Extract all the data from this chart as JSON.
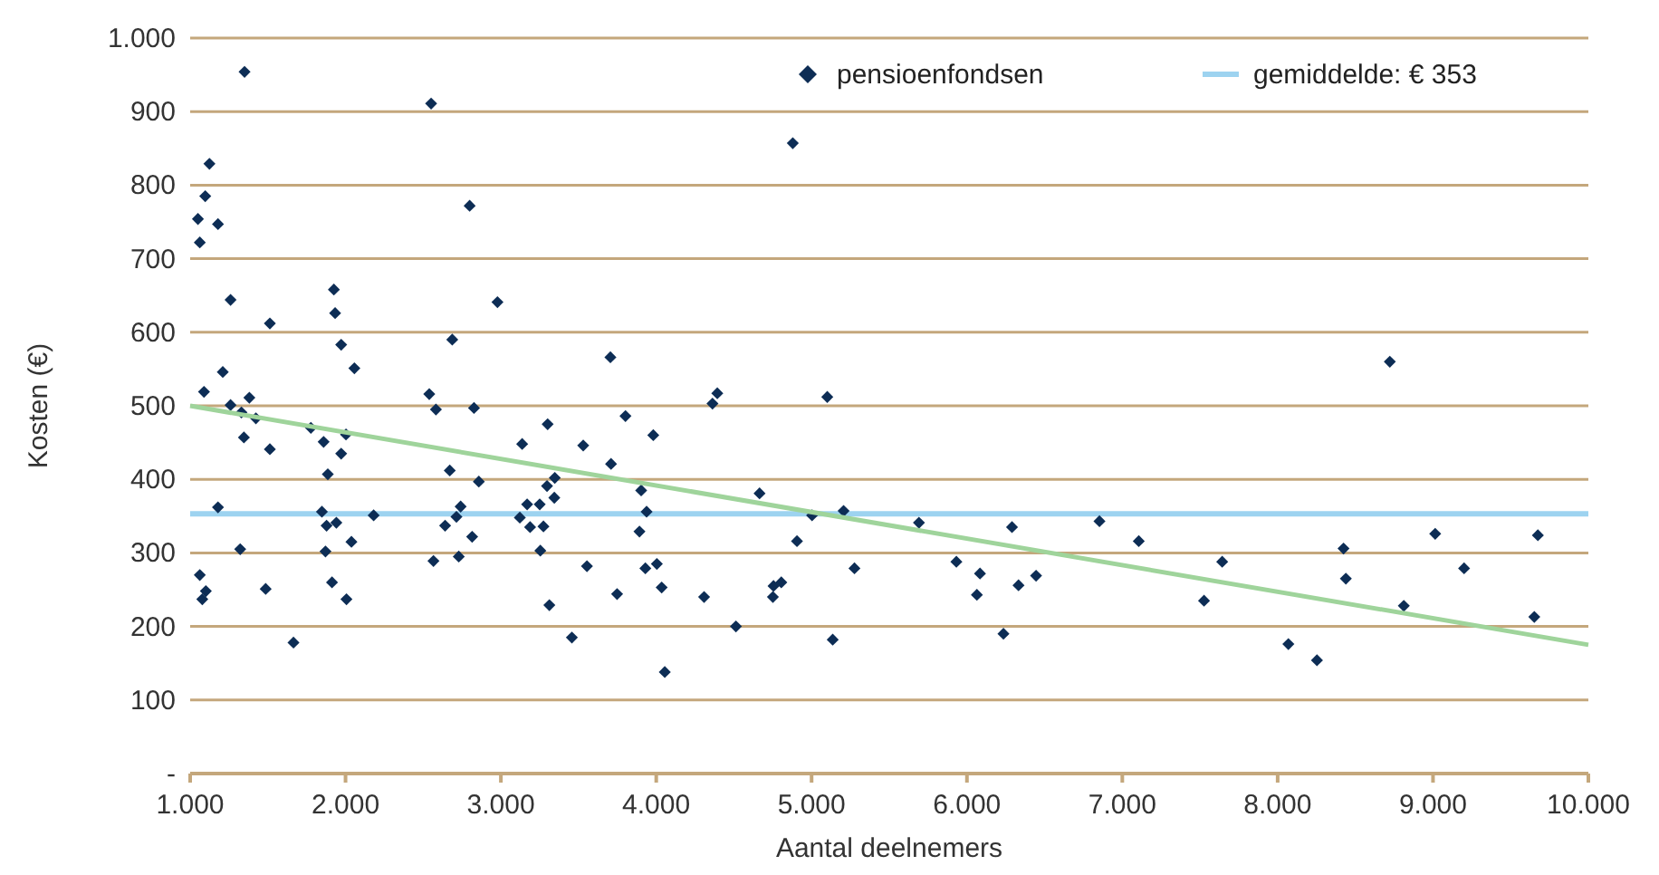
{
  "chart_data": {
    "type": "scatter",
    "xlabel": "Aantal deelnemers",
    "ylabel": "Kosten (€)",
    "xlim": [
      1000,
      10000
    ],
    "xticks": [
      {
        "value": 1000,
        "label": "1.000"
      },
      {
        "value": 2000,
        "label": "2.000"
      },
      {
        "value": 3000,
        "label": "3.000"
      },
      {
        "value": 4000,
        "label": "4.000"
      },
      {
        "value": 5000,
        "label": "5.000"
      },
      {
        "value": 6000,
        "label": "6.000"
      },
      {
        "value": 7000,
        "label": "7.000"
      },
      {
        "value": 8000,
        "label": "8.000"
      },
      {
        "value": 9000,
        "label": "9.000"
      },
      {
        "value": 10000,
        "label": "10.000"
      }
    ],
    "ylim": [
      0,
      1000
    ],
    "yticks": [
      {
        "value": 0,
        "label": "-"
      },
      100,
      200,
      300,
      400,
      500,
      600,
      700,
      800,
      900,
      {
        "value": 1000,
        "label": "1.000"
      }
    ],
    "grid": "y",
    "legend": "top right",
    "series": [
      {
        "name": "pensioenfondsen",
        "marker": "diamond",
        "color": "#0d2d55",
        "x": [
          1350,
          2551,
          1124,
          1097,
          1050,
          1179,
          1062,
          2799,
          1260,
          1925,
          1513,
          2978,
          1933,
          1972,
          2687,
          1210,
          2057,
          1089,
          1260,
          1330,
          1381,
          1423,
          2539,
          2582,
          2827,
          1777,
          1859,
          2003,
          1972,
          1346,
          1513,
          1886,
          3137,
          2671,
          2858,
          1179,
          1848,
          1878,
          1941,
          2181,
          2641,
          2741,
          2714,
          2815,
          3122,
          3169,
          3188,
          3254,
          1322,
          1871,
          2038,
          2566,
          2729,
          1062,
          1101,
          1078,
          1486,
          1913,
          2006,
          1665,
          4879,
          3705,
          3802,
          3301,
          3530,
          3709,
          3981,
          4362,
          4393,
          5101,
          3347,
          3297,
          3344,
          3903,
          3938,
          3892,
          3250,
          3274,
          4665,
          5003,
          5206,
          4906,
          5276,
          3554,
          3312,
          3748,
          3930,
          4004,
          4035,
          3457,
          4308,
          4513,
          4751,
          4755,
          4805,
          5136,
          4055,
          5691,
          5932,
          6084,
          6064,
          6290,
          6332,
          6445,
          6235,
          6853,
          7106,
          7526,
          7643,
          8722,
          8069,
          8253,
          8424,
          8439,
          8812,
          9014,
          9200,
          9675,
          9652
        ],
        "values": [
          954,
          911,
          829,
          785,
          754,
          747,
          722,
          772,
          644,
          658,
          612,
          641,
          626,
          583,
          590,
          546,
          551,
          519,
          501,
          491,
          511,
          483,
          516,
          495,
          497,
          470,
          451,
          461,
          435,
          457,
          441,
          407,
          448,
          412,
          397,
          362,
          356,
          337,
          341,
          351,
          337,
          363,
          349,
          322,
          348,
          366,
          335,
          303,
          305,
          302,
          315,
          289,
          295,
          270,
          248,
          237,
          251,
          260,
          237,
          178,
          857,
          566,
          486,
          475,
          446,
          421,
          460,
          503,
          517,
          512,
          402,
          391,
          375,
          385,
          356,
          329,
          366,
          336,
          381,
          351,
          357,
          316,
          279,
          282,
          229,
          244,
          279,
          285,
          253,
          185,
          240,
          200,
          240,
          255,
          260,
          182,
          138,
          341,
          288,
          272,
          243,
          335,
          256,
          269,
          190,
          343,
          316,
          235,
          288,
          560,
          176,
          154,
          306,
          265,
          228,
          326,
          279,
          324,
          213
        ]
      },
      {
        "type": "line",
        "color": "#9fd49b",
        "x": [
          1000,
          10000
        ],
        "values": [
          500,
          175
        ]
      }
    ],
    "ref_lines": [
      {
        "axis": "y",
        "value": 353,
        "label": "gemiddelde: € 353",
        "color": "#9dd3f0"
      }
    ]
  }
}
